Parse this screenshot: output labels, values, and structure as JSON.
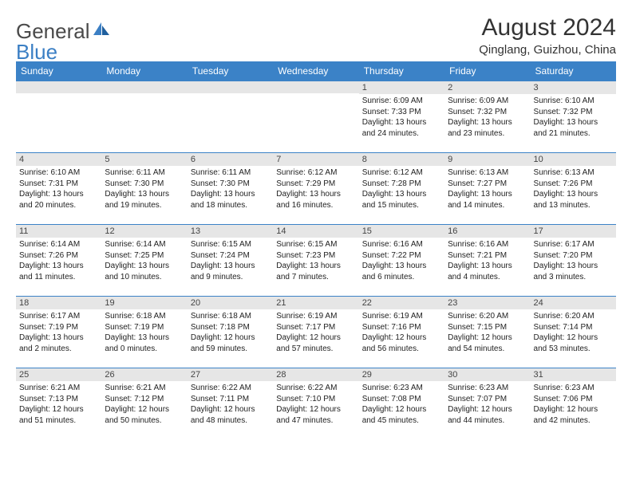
{
  "brand": {
    "part1": "General",
    "part2": "Blue"
  },
  "title": "August 2024",
  "subtitle": "Qinglang, Guizhou, China",
  "colors": {
    "header_bg": "#3b82c7",
    "header_text": "#ffffff",
    "daynum_bg": "#e6e6e6",
    "daynum_border": "#3b82c7",
    "text": "#222222",
    "brand_gray": "#4a4a4a",
    "brand_blue": "#3b7fc4"
  },
  "fontsize": {
    "title": 30,
    "subtitle": 15,
    "dayheader": 12,
    "daynum": 11,
    "body": 10
  },
  "dayHeaders": [
    "Sunday",
    "Monday",
    "Tuesday",
    "Wednesday",
    "Thursday",
    "Friday",
    "Saturday"
  ],
  "weeks": [
    [
      null,
      null,
      null,
      null,
      {
        "n": "1",
        "sr": "6:09 AM",
        "ss": "7:33 PM",
        "dl": "13 hours and 24 minutes."
      },
      {
        "n": "2",
        "sr": "6:09 AM",
        "ss": "7:32 PM",
        "dl": "13 hours and 23 minutes."
      },
      {
        "n": "3",
        "sr": "6:10 AM",
        "ss": "7:32 PM",
        "dl": "13 hours and 21 minutes."
      }
    ],
    [
      {
        "n": "4",
        "sr": "6:10 AM",
        "ss": "7:31 PM",
        "dl": "13 hours and 20 minutes."
      },
      {
        "n": "5",
        "sr": "6:11 AM",
        "ss": "7:30 PM",
        "dl": "13 hours and 19 minutes."
      },
      {
        "n": "6",
        "sr": "6:11 AM",
        "ss": "7:30 PM",
        "dl": "13 hours and 18 minutes."
      },
      {
        "n": "7",
        "sr": "6:12 AM",
        "ss": "7:29 PM",
        "dl": "13 hours and 16 minutes."
      },
      {
        "n": "8",
        "sr": "6:12 AM",
        "ss": "7:28 PM",
        "dl": "13 hours and 15 minutes."
      },
      {
        "n": "9",
        "sr": "6:13 AM",
        "ss": "7:27 PM",
        "dl": "13 hours and 14 minutes."
      },
      {
        "n": "10",
        "sr": "6:13 AM",
        "ss": "7:26 PM",
        "dl": "13 hours and 13 minutes."
      }
    ],
    [
      {
        "n": "11",
        "sr": "6:14 AM",
        "ss": "7:26 PM",
        "dl": "13 hours and 11 minutes."
      },
      {
        "n": "12",
        "sr": "6:14 AM",
        "ss": "7:25 PM",
        "dl": "13 hours and 10 minutes."
      },
      {
        "n": "13",
        "sr": "6:15 AM",
        "ss": "7:24 PM",
        "dl": "13 hours and 9 minutes."
      },
      {
        "n": "14",
        "sr": "6:15 AM",
        "ss": "7:23 PM",
        "dl": "13 hours and 7 minutes."
      },
      {
        "n": "15",
        "sr": "6:16 AM",
        "ss": "7:22 PM",
        "dl": "13 hours and 6 minutes."
      },
      {
        "n": "16",
        "sr": "6:16 AM",
        "ss": "7:21 PM",
        "dl": "13 hours and 4 minutes."
      },
      {
        "n": "17",
        "sr": "6:17 AM",
        "ss": "7:20 PM",
        "dl": "13 hours and 3 minutes."
      }
    ],
    [
      {
        "n": "18",
        "sr": "6:17 AM",
        "ss": "7:19 PM",
        "dl": "13 hours and 2 minutes."
      },
      {
        "n": "19",
        "sr": "6:18 AM",
        "ss": "7:19 PM",
        "dl": "13 hours and 0 minutes."
      },
      {
        "n": "20",
        "sr": "6:18 AM",
        "ss": "7:18 PM",
        "dl": "12 hours and 59 minutes."
      },
      {
        "n": "21",
        "sr": "6:19 AM",
        "ss": "7:17 PM",
        "dl": "12 hours and 57 minutes."
      },
      {
        "n": "22",
        "sr": "6:19 AM",
        "ss": "7:16 PM",
        "dl": "12 hours and 56 minutes."
      },
      {
        "n": "23",
        "sr": "6:20 AM",
        "ss": "7:15 PM",
        "dl": "12 hours and 54 minutes."
      },
      {
        "n": "24",
        "sr": "6:20 AM",
        "ss": "7:14 PM",
        "dl": "12 hours and 53 minutes."
      }
    ],
    [
      {
        "n": "25",
        "sr": "6:21 AM",
        "ss": "7:13 PM",
        "dl": "12 hours and 51 minutes."
      },
      {
        "n": "26",
        "sr": "6:21 AM",
        "ss": "7:12 PM",
        "dl": "12 hours and 50 minutes."
      },
      {
        "n": "27",
        "sr": "6:22 AM",
        "ss": "7:11 PM",
        "dl": "12 hours and 48 minutes."
      },
      {
        "n": "28",
        "sr": "6:22 AM",
        "ss": "7:10 PM",
        "dl": "12 hours and 47 minutes."
      },
      {
        "n": "29",
        "sr": "6:23 AM",
        "ss": "7:08 PM",
        "dl": "12 hours and 45 minutes."
      },
      {
        "n": "30",
        "sr": "6:23 AM",
        "ss": "7:07 PM",
        "dl": "12 hours and 44 minutes."
      },
      {
        "n": "31",
        "sr": "6:23 AM",
        "ss": "7:06 PM",
        "dl": "12 hours and 42 minutes."
      }
    ]
  ],
  "labels": {
    "sunrise": "Sunrise: ",
    "sunset": "Sunset: ",
    "daylight": "Daylight: "
  }
}
